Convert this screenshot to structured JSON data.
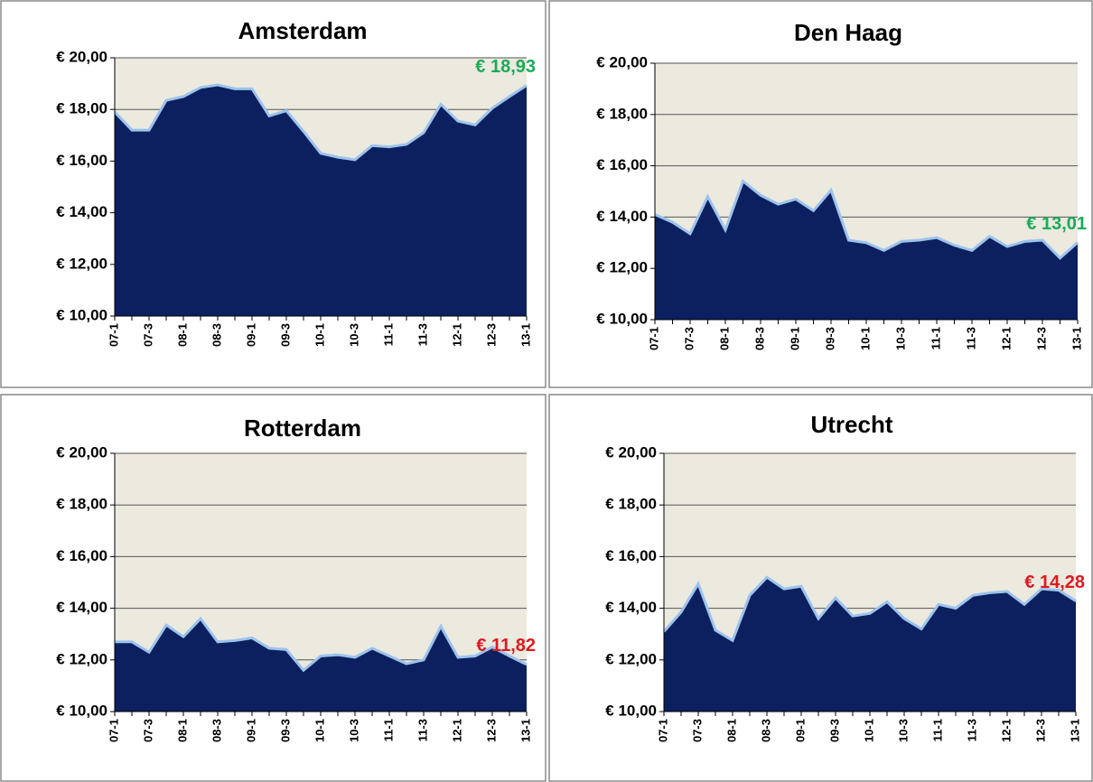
{
  "chart_data": [
    {
      "type": "area",
      "title": "Amsterdam",
      "categories": [
        "07-1",
        null,
        "07-3",
        null,
        "08-1",
        null,
        "08-3",
        null,
        "09-1",
        null,
        "09-3",
        null,
        "10-1",
        null,
        "10-3",
        null,
        "11-1",
        null,
        "11-3",
        null,
        "12-1",
        null,
        "12-3",
        null,
        "13-1"
      ],
      "values": [
        17.9,
        17.2,
        17.2,
        18.35,
        18.5,
        18.85,
        18.95,
        18.8,
        18.8,
        17.75,
        17.95,
        17.15,
        16.3,
        16.15,
        16.05,
        16.6,
        16.55,
        16.65,
        17.1,
        18.2,
        17.55,
        17.4,
        18.05,
        18.5,
        18.93
      ],
      "value_labels": [
        null,
        null,
        null,
        null,
        null,
        null,
        null,
        null,
        null,
        null,
        null,
        null,
        null,
        null,
        null,
        null,
        null,
        null,
        null,
        null,
        null,
        null,
        null,
        null,
        "€ 18,93"
      ],
      "value_label_color": "#1aab5a",
      "color": "#0c1f5e",
      "line_color": "#9cc3ec",
      "background": "#ece9df",
      "ylim": [
        10,
        20
      ],
      "yticks": [
        {
          "value": 10,
          "label": "€ 10,00"
        },
        {
          "value": 12,
          "label": "€ 12,00"
        },
        {
          "value": 14,
          "label": "€ 14,00"
        },
        {
          "value": 16,
          "label": "€ 16,00"
        },
        {
          "value": 18,
          "label": "€ 18,00"
        },
        {
          "value": 20,
          "label": "€ 20,00"
        }
      ],
      "grid": true
    },
    {
      "type": "area",
      "title": "Den Haag",
      "categories": [
        "07-1",
        null,
        "07-3",
        null,
        "08-1",
        null,
        "08-3",
        null,
        "09-1",
        null,
        "09-3",
        null,
        "10-1",
        null,
        "10-3",
        null,
        "11-1",
        null,
        "11-3",
        null,
        "12-1",
        null,
        "12-3",
        null,
        "13-1"
      ],
      "values": [
        14.1,
        13.8,
        13.35,
        14.8,
        13.5,
        15.4,
        14.85,
        14.5,
        14.7,
        14.25,
        15.05,
        13.1,
        13.0,
        12.7,
        13.05,
        13.1,
        13.2,
        12.9,
        12.7,
        13.25,
        12.85,
        13.05,
        13.1,
        12.4,
        13.01
      ],
      "value_labels": [
        null,
        null,
        null,
        null,
        null,
        null,
        null,
        null,
        null,
        null,
        null,
        null,
        null,
        null,
        null,
        null,
        null,
        null,
        null,
        null,
        null,
        null,
        null,
        null,
        "€ 13,01"
      ],
      "value_label_color": "#1aab5a",
      "color": "#0c1f5e",
      "line_color": "#9cc3ec",
      "background": "#ece9df",
      "ylim": [
        10,
        20
      ],
      "yticks": [
        {
          "value": 10,
          "label": "€ 10,00"
        },
        {
          "value": 12,
          "label": "€ 12,00"
        },
        {
          "value": 14,
          "label": "€ 14,00"
        },
        {
          "value": 16,
          "label": "€ 16,00"
        },
        {
          "value": 18,
          "label": "€ 18,00"
        },
        {
          "value": 20,
          "label": "€ 20,00"
        }
      ],
      "grid": true
    },
    {
      "type": "area",
      "title": "Rotterdam",
      "categories": [
        "07-1",
        null,
        "07-3",
        null,
        "08-1",
        null,
        "08-3",
        null,
        "09-1",
        null,
        "09-3",
        null,
        "10-1",
        null,
        "10-3",
        null,
        "11-1",
        null,
        "11-3",
        null,
        "12-1",
        null,
        "12-3",
        null,
        "13-1"
      ],
      "values": [
        12.7,
        12.7,
        12.3,
        13.35,
        12.9,
        13.6,
        12.7,
        12.75,
        12.85,
        12.45,
        12.4,
        11.6,
        12.15,
        12.2,
        12.1,
        12.45,
        12.15,
        11.85,
        12.0,
        13.3,
        12.1,
        12.15,
        12.5,
        12.15,
        11.82
      ],
      "value_labels": [
        null,
        null,
        null,
        null,
        null,
        null,
        null,
        null,
        null,
        null,
        null,
        null,
        null,
        null,
        null,
        null,
        null,
        null,
        null,
        null,
        null,
        null,
        null,
        null,
        "€ 11,82"
      ],
      "value_label_color": "#e0191e",
      "color": "#0c1f5e",
      "line_color": "#9cc3ec",
      "background": "#ece9df",
      "ylim": [
        10,
        20
      ],
      "yticks": [
        {
          "value": 10,
          "label": "€ 10,00"
        },
        {
          "value": 12,
          "label": "€ 12,00"
        },
        {
          "value": 14,
          "label": "€ 14,00"
        },
        {
          "value": 16,
          "label": "€ 16,00"
        },
        {
          "value": 18,
          "label": "€ 18,00"
        },
        {
          "value": 20,
          "label": "€ 20,00"
        }
      ],
      "grid": true
    },
    {
      "type": "area",
      "title": "Utrecht",
      "categories": [
        "07-1",
        null,
        "07-3",
        null,
        "08-1",
        null,
        "08-3",
        null,
        "09-1",
        null,
        "09-3",
        null,
        "10-1",
        null,
        "10-3",
        null,
        "11-1",
        null,
        "11-3",
        null,
        "12-1",
        null,
        "12-3",
        null,
        "13-1"
      ],
      "values": [
        13.1,
        13.85,
        14.95,
        13.15,
        12.75,
        14.5,
        15.2,
        14.75,
        14.85,
        13.6,
        14.4,
        13.7,
        13.8,
        14.25,
        13.6,
        13.2,
        14.15,
        14.0,
        14.5,
        14.6,
        14.65,
        14.15,
        14.75,
        14.7,
        14.28
      ],
      "value_labels": [
        null,
        null,
        null,
        null,
        null,
        null,
        null,
        null,
        null,
        null,
        null,
        null,
        null,
        null,
        null,
        null,
        null,
        null,
        null,
        null,
        null,
        null,
        null,
        null,
        "€ 14,28"
      ],
      "value_label_color": "#e0191e",
      "color": "#0c1f5e",
      "line_color": "#9cc3ec",
      "background": "#ece9df",
      "ylim": [
        10,
        20
      ],
      "yticks": [
        {
          "value": 10,
          "label": "€ 10,00"
        },
        {
          "value": 12,
          "label": "€ 12,00"
        },
        {
          "value": 14,
          "label": "€ 14,00"
        },
        {
          "value": 16,
          "label": "€ 16,00"
        },
        {
          "value": 18,
          "label": "€ 18,00"
        },
        {
          "value": 20,
          "label": "€ 20,00"
        }
      ],
      "grid": true
    }
  ]
}
